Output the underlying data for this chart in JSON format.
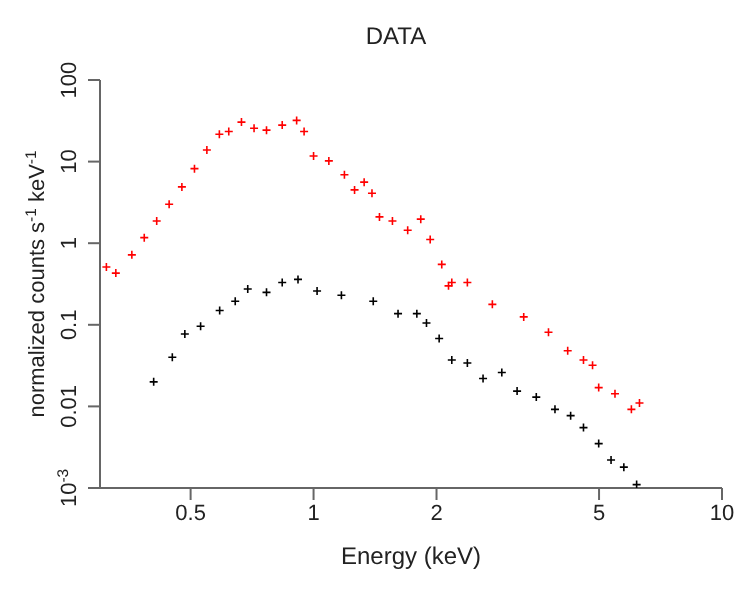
{
  "chart_data": {
    "type": "scatter",
    "title": "DATA",
    "xlabel": "Energy (keV)",
    "ylabel": "normalized counts s$^{-1}$ keV$^{-1}$",
    "log": "xy",
    "legend": false,
    "marker": "cross",
    "xlim": [
      0.3,
      10
    ],
    "xticks": [
      0.5,
      1,
      2,
      5,
      10
    ],
    "ylim": [
      0.001,
      100
    ],
    "yticks": [
      {
        "value": 0.001,
        "label": "10$^{-3}$"
      },
      0.01,
      0.1,
      1,
      10,
      100
    ],
    "series": [
      {
        "color": "#ff0000",
        "x": [
          0.311,
          0.328,
          0.359,
          0.385,
          0.413,
          0.443,
          0.476,
          0.511,
          0.548,
          0.588,
          0.62,
          0.666,
          0.715,
          0.767,
          0.838,
          0.909,
          0.948,
          1.0,
          1.09,
          1.19,
          1.26,
          1.33,
          1.39,
          1.45,
          1.56,
          1.7,
          1.83,
          1.93,
          2.06,
          2.14,
          2.18,
          2.38,
          2.74,
          3.27,
          3.76,
          4.19,
          4.58,
          4.82,
          4.99,
          5.47,
          6.0,
          6.28
        ],
        "values": [
          0.51,
          0.43,
          0.72,
          1.17,
          1.87,
          3.0,
          4.9,
          8.2,
          13.9,
          21.6,
          23.4,
          30.5,
          25.6,
          24.3,
          28,
          32,
          23.4,
          11.7,
          10.2,
          6.9,
          4.5,
          5.6,
          4.1,
          2.1,
          1.87,
          1.44,
          1.97,
          1.11,
          0.55,
          0.3,
          0.33,
          0.33,
          0.178,
          0.125,
          0.081,
          0.048,
          0.037,
          0.032,
          0.017,
          0.0143,
          0.0092,
          0.011
        ]
      },
      {
        "color": "#000000",
        "x": [
          0.406,
          0.451,
          0.484,
          0.529,
          0.589,
          0.643,
          0.69,
          0.767,
          0.838,
          0.916,
          1.02,
          1.17,
          1.4,
          1.61,
          1.79,
          1.89,
          2.03,
          2.18,
          2.38,
          2.6,
          2.89,
          3.15,
          3.51,
          3.9,
          4.26,
          4.58,
          4.99,
          5.35,
          5.75,
          6.18
        ],
        "values": [
          0.02,
          0.04,
          0.077,
          0.096,
          0.15,
          0.194,
          0.275,
          0.25,
          0.33,
          0.36,
          0.26,
          0.23,
          0.194,
          0.137,
          0.137,
          0.105,
          0.068,
          0.037,
          0.034,
          0.022,
          0.026,
          0.0154,
          0.013,
          0.0092,
          0.0077,
          0.0055,
          0.0035,
          0.0022,
          0.0018,
          0.0011
        ]
      }
    ]
  }
}
